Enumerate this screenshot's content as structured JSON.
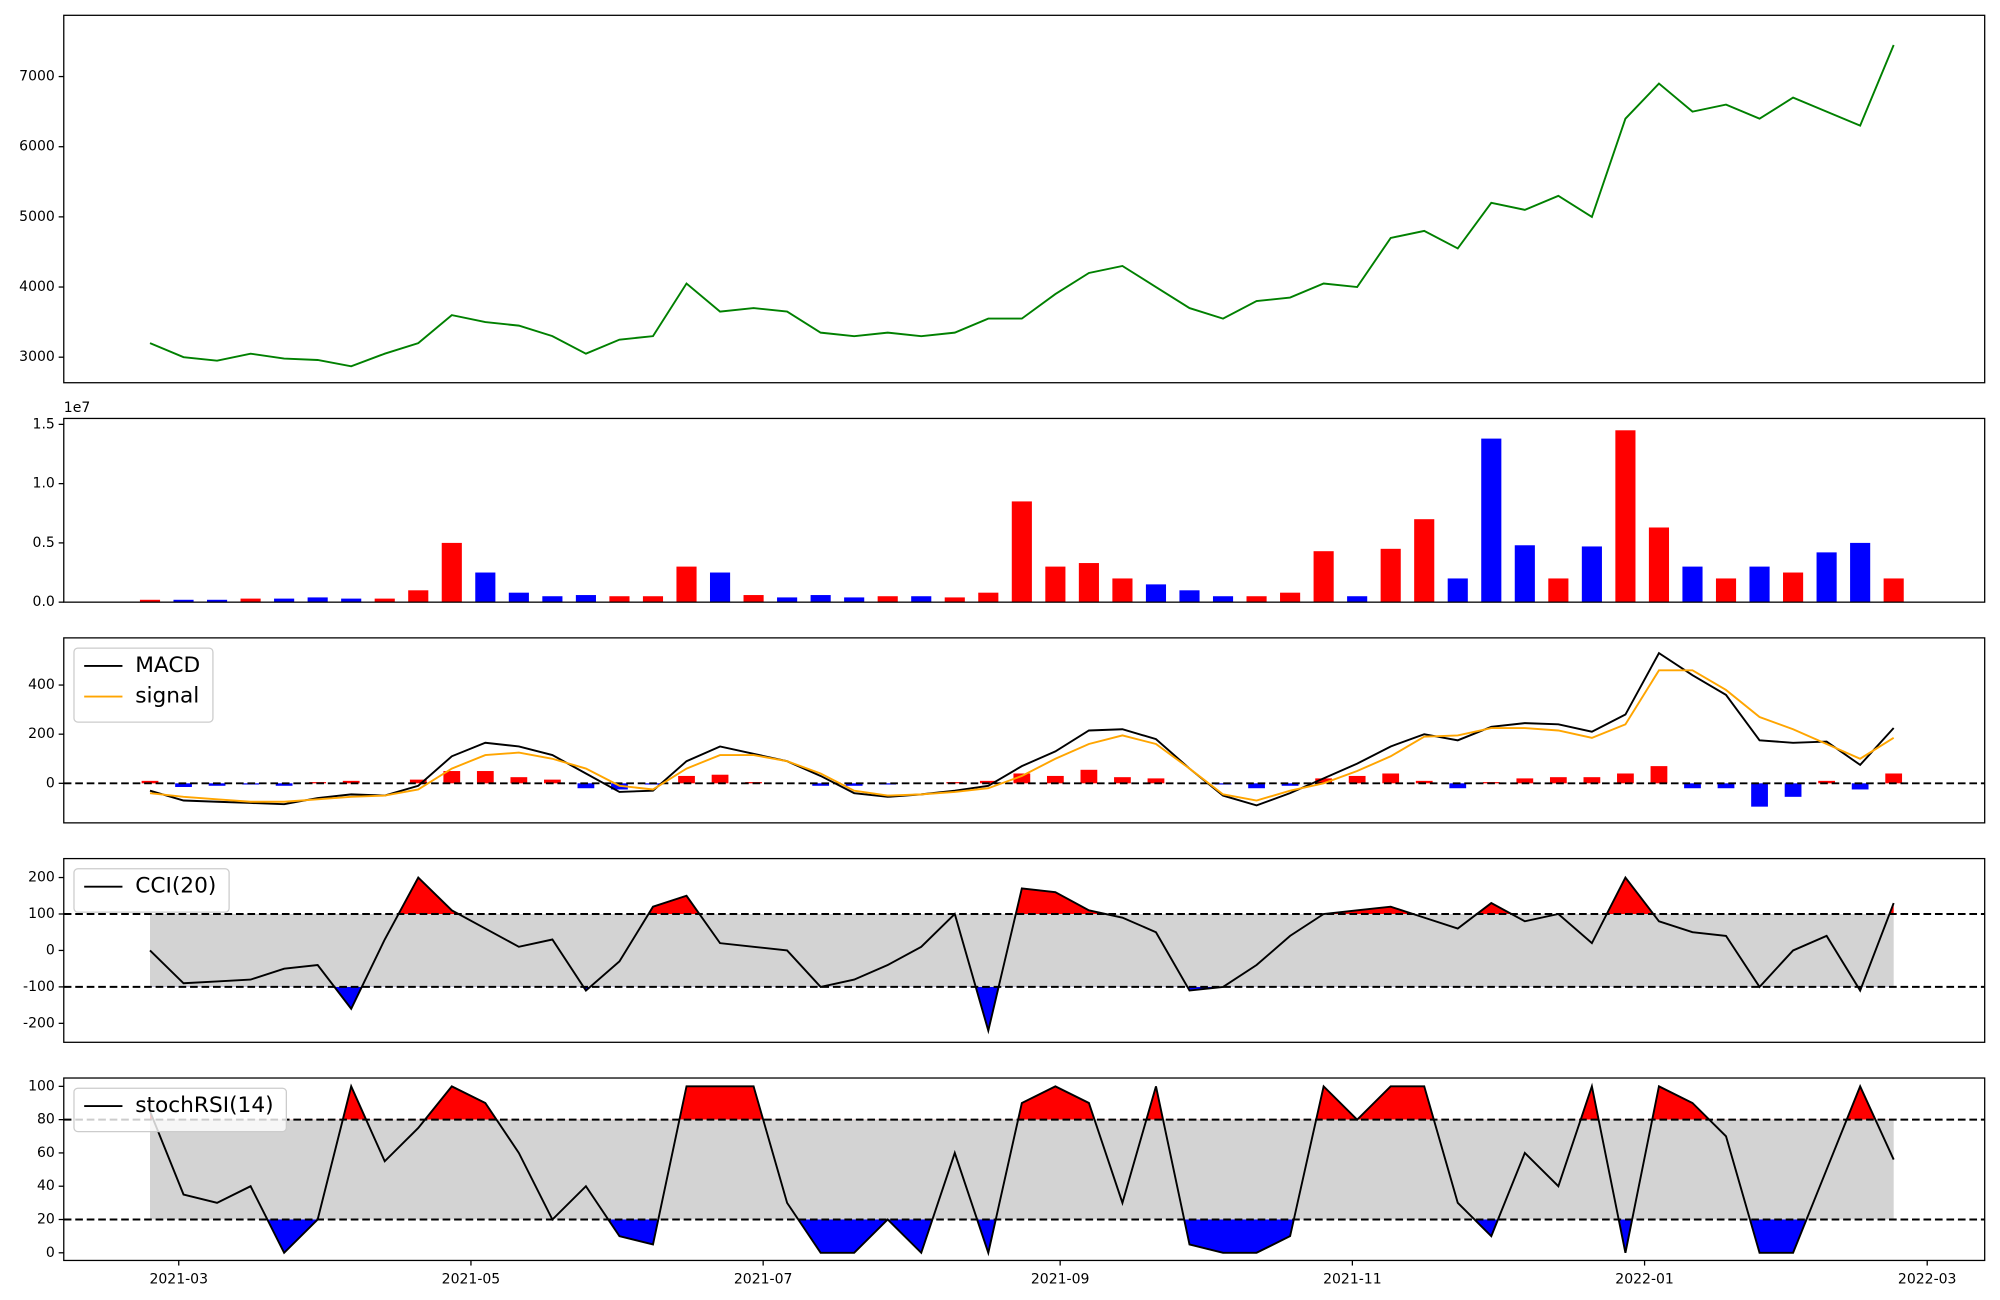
{
  "chart_data": [
    {
      "type": "line",
      "x": [
        22,
        29,
        36,
        43,
        50,
        57,
        64,
        71,
        78,
        85,
        92,
        99,
        106,
        113,
        120,
        127,
        134,
        141,
        148,
        155,
        162,
        169,
        176,
        183,
        190,
        197,
        204,
        211,
        218,
        225,
        232,
        239,
        246,
        253,
        260,
        267,
        274,
        281,
        288,
        295,
        302,
        309,
        316,
        323,
        330,
        337,
        344,
        351,
        358,
        365,
        372,
        379,
        386
      ],
      "xlim": [
        4,
        405
      ],
      "series": [
        {
          "color": "green",
          "values": [
            3200,
            3000,
            2950,
            3050,
            2980,
            2960,
            2870,
            3050,
            3200,
            3600,
            3500,
            3450,
            3300,
            3050,
            3250,
            3300,
            4050,
            3650,
            3700,
            3650,
            3350,
            3300,
            3350,
            3300,
            3350,
            3550,
            3550,
            3900,
            4200,
            4300,
            4000,
            3700,
            3550,
            3800,
            3850,
            4050,
            4000,
            4700,
            4800,
            4550,
            5200,
            5100,
            5300,
            5000,
            6400,
            6900,
            6500,
            6600,
            6400,
            6700,
            6500,
            6300,
            7450
          ]
        }
      ],
      "ylim": [
        2636,
        7873
      ],
      "yticks": [
        3000,
        4000,
        5000,
        6000,
        7000
      ]
    },
    {
      "type": "bar",
      "x": [
        22,
        29,
        36,
        43,
        50,
        57,
        64,
        71,
        78,
        85,
        92,
        99,
        106,
        113,
        120,
        127,
        134,
        141,
        148,
        155,
        162,
        169,
        176,
        183,
        190,
        197,
        204,
        211,
        218,
        225,
        232,
        239,
        246,
        253,
        260,
        267,
        274,
        281,
        288,
        295,
        302,
        309,
        316,
        323,
        330,
        337,
        344,
        351,
        358,
        365,
        372,
        379,
        386
      ],
      "xlim": [
        4,
        405
      ],
      "values": [
        0.02,
        0.02,
        0.02,
        0.03,
        0.03,
        0.04,
        0.03,
        0.03,
        0.1,
        0.5,
        0.25,
        0.08,
        0.05,
        0.06,
        0.05,
        0.05,
        0.3,
        0.25,
        0.06,
        0.04,
        0.06,
        0.04,
        0.05,
        0.05,
        0.04,
        0.08,
        0.85,
        0.3,
        0.33,
        0.2,
        0.15,
        0.1,
        0.05,
        0.05,
        0.08,
        0.43,
        0.05,
        0.45,
        0.7,
        0.2,
        1.38,
        0.48,
        0.2,
        0.47,
        1.45,
        0.63,
        0.3,
        0.2,
        0.3,
        0.25,
        0.42,
        0.5,
        0.2
      ],
      "colors": [
        "red",
        "blue",
        "blue",
        "red",
        "blue",
        "blue",
        "blue",
        "red",
        "red",
        "red",
        "blue",
        "blue",
        "blue",
        "blue",
        "red",
        "red",
        "red",
        "blue",
        "red",
        "blue",
        "blue",
        "blue",
        "red",
        "blue",
        "red",
        "red",
        "red",
        "red",
        "red",
        "red",
        "blue",
        "blue",
        "blue",
        "red",
        "red",
        "red",
        "blue",
        "red",
        "red",
        "blue",
        "blue",
        "blue",
        "red",
        "blue",
        "red",
        "red",
        "blue",
        "red",
        "blue",
        "red",
        "blue",
        "blue",
        "red"
      ],
      "ylim": [
        0,
        1.55
      ],
      "yticks": [
        {
          "value": 0,
          "label": "0.0"
        },
        {
          "value": 0.5,
          "label": "0.5"
        },
        {
          "value": 1,
          "label": "1.0"
        },
        {
          "value": 1.5,
          "label": "1.5"
        }
      ],
      "offset_label": "1e7"
    },
    {
      "type": "line",
      "x": [
        22,
        29,
        36,
        43,
        50,
        57,
        64,
        71,
        78,
        85,
        92,
        99,
        106,
        113,
        120,
        127,
        134,
        141,
        148,
        155,
        162,
        169,
        176,
        183,
        190,
        197,
        204,
        211,
        218,
        225,
        232,
        239,
        246,
        253,
        260,
        267,
        274,
        281,
        288,
        295,
        302,
        309,
        316,
        323,
        330,
        337,
        344,
        351,
        358,
        365,
        372,
        379,
        386
      ],
      "xlim": [
        4,
        405
      ],
      "series": [
        {
          "name": "MACD",
          "color": "black",
          "values": [
            -30,
            -70,
            -75,
            -80,
            -85,
            -60,
            -45,
            -50,
            -10,
            110,
            165,
            150,
            115,
            40,
            -35,
            -30,
            90,
            150,
            120,
            90,
            30,
            -40,
            -55,
            -45,
            -30,
            -10,
            70,
            130,
            215,
            220,
            180,
            60,
            -50,
            -90,
            -40,
            20,
            80,
            150,
            200,
            175,
            230,
            245,
            240,
            210,
            280,
            530,
            440,
            360,
            175,
            165,
            170,
            75,
            225
          ]
        },
        {
          "name": "signal",
          "color": "orange",
          "values": [
            -40,
            -55,
            -65,
            -75,
            -75,
            -65,
            -55,
            -50,
            -25,
            60,
            115,
            125,
            100,
            60,
            -10,
            -25,
            60,
            115,
            115,
            90,
            40,
            -30,
            -50,
            -45,
            -35,
            -20,
            30,
            100,
            160,
            195,
            160,
            60,
            -45,
            -70,
            -30,
            0,
            50,
            110,
            190,
            195,
            225,
            225,
            215,
            185,
            240,
            460,
            460,
            380,
            270,
            220,
            160,
            100,
            185
          ]
        }
      ],
      "histogram": {
        "values": [
          10,
          -15,
          -10,
          -5,
          -10,
          5,
          10,
          0,
          15,
          50,
          50,
          25,
          15,
          -20,
          -25,
          -5,
          30,
          35,
          5,
          0,
          -10,
          -10,
          -5,
          0,
          5,
          10,
          40,
          30,
          55,
          25,
          20,
          0,
          -5,
          -20,
          -10,
          20,
          30,
          40,
          10,
          -20,
          5,
          20,
          25,
          25,
          40,
          70,
          -20,
          -20,
          -95,
          -55,
          10,
          -25,
          40
        ],
        "positive_color": "red",
        "negative_color": "blue"
      },
      "hlines": [
        0
      ],
      "ylim": [
        -161,
        592
      ],
      "yticks": [
        0,
        200,
        400
      ],
      "legend": "upper left"
    },
    {
      "type": "line",
      "x": [
        22,
        29,
        36,
        43,
        50,
        57,
        64,
        71,
        78,
        85,
        92,
        99,
        106,
        113,
        120,
        127,
        134,
        141,
        148,
        155,
        162,
        169,
        176,
        183,
        190,
        197,
        204,
        211,
        218,
        225,
        232,
        239,
        246,
        253,
        260,
        267,
        274,
        281,
        288,
        295,
        302,
        309,
        316,
        323,
        330,
        337,
        344,
        351,
        358,
        365,
        372,
        379,
        386
      ],
      "xlim": [
        4,
        405
      ],
      "series": [
        {
          "name": "CCI(20)",
          "color": "black",
          "values": [
            0,
            -90,
            -85,
            -80,
            -50,
            -40,
            -160,
            30,
            200,
            110,
            60,
            10,
            30,
            -110,
            -30,
            120,
            150,
            20,
            10,
            0,
            -100,
            -80,
            -40,
            10,
            100,
            -220,
            170,
            160,
            110,
            90,
            50,
            -110,
            -100,
            -40,
            40,
            100,
            110,
            120,
            90,
            60,
            130,
            80,
            100,
            20,
            200,
            80,
            50,
            40,
            -100,
            0,
            40,
            -110,
            130
          ]
        }
      ],
      "hlines": [
        -100,
        100
      ],
      "band_color": "lightgray",
      "above_color": "red",
      "below_color": "blue",
      "ylim": [
        -252,
        252
      ],
      "yticks": [
        -200,
        -100,
        0,
        100,
        200
      ],
      "legend": "upper left"
    },
    {
      "type": "line",
      "x": [
        22,
        29,
        36,
        43,
        50,
        57,
        64,
        71,
        78,
        85,
        92,
        99,
        106,
        113,
        120,
        127,
        134,
        141,
        148,
        155,
        162,
        169,
        176,
        183,
        190,
        197,
        204,
        211,
        218,
        225,
        232,
        239,
        246,
        253,
        260,
        267,
        274,
        281,
        288,
        295,
        302,
        309,
        316,
        323,
        330,
        337,
        344,
        351,
        358,
        365,
        372,
        379,
        386
      ],
      "xlim": [
        4,
        405
      ],
      "series": [
        {
          "name": "stochRSI(14)",
          "color": "black",
          "values": [
            85,
            35,
            30,
            40,
            0,
            20,
            100,
            55,
            75,
            100,
            90,
            60,
            20,
            40,
            10,
            5,
            100,
            100,
            100,
            30,
            0,
            0,
            20,
            0,
            60,
            0,
            90,
            100,
            90,
            30,
            100,
            5,
            0,
            0,
            10,
            100,
            80,
            100,
            100,
            30,
            10,
            60,
            40,
            100,
            0,
            100,
            90,
            70,
            0,
            0,
            50,
            100,
            56
          ]
        }
      ],
      "hlines": [
        20,
        80
      ],
      "band_color": "lightgray",
      "above_color": "red",
      "below_color": "blue",
      "ylim": [
        -4.6,
        105
      ],
      "yticks": [
        0,
        20,
        40,
        60,
        80,
        100
      ],
      "legend": "upper left",
      "xticks": [
        {
          "value": 28,
          "label": "2021-03"
        },
        {
          "value": 89,
          "label": "2021-05"
        },
        {
          "value": 150,
          "label": "2021-07"
        },
        {
          "value": 212,
          "label": "2021-09"
        },
        {
          "value": 273,
          "label": "2021-11"
        },
        {
          "value": 334,
          "label": "2022-01"
        },
        {
          "value": 393,
          "label": "2022-03"
        }
      ]
    }
  ]
}
